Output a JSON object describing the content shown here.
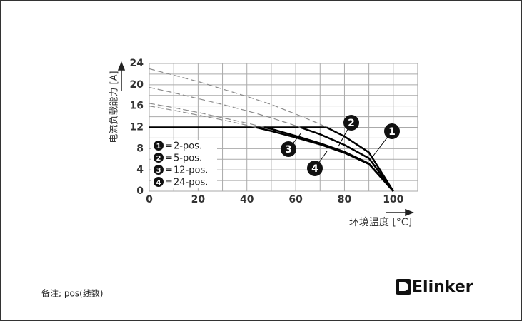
{
  "chart_data": {
    "type": "line",
    "ylabel": "电流负载能力 [A]",
    "xlabel": "环境温度 [°C]",
    "x": [
      0,
      10,
      20,
      30,
      40,
      50,
      60,
      70,
      80,
      90,
      100
    ],
    "limit": 12,
    "legend_separator": "=",
    "series": [
      {
        "marker": "1",
        "name": "2-pos.",
        "color": "#000000",
        "values": [
          23,
          21.8,
          20.6,
          19.2,
          17.8,
          16.3,
          14.5,
          12.6,
          10.3,
          7.3,
          0
        ]
      },
      {
        "marker": "2",
        "name": "5-pos.",
        "color": "#000000",
        "values": [
          19.5,
          18.5,
          17.4,
          16.3,
          15.1,
          13.8,
          12.3,
          10.7,
          8.7,
          6.2,
          0
        ]
      },
      {
        "marker": "3",
        "name": "12-pos.",
        "color": "#000000",
        "values": [
          16.5,
          15.7,
          14.8,
          13.8,
          12.8,
          11.7,
          10.4,
          9.0,
          7.4,
          5.2,
          0
        ]
      },
      {
        "marker": "4",
        "name": "24-pos.",
        "color": "#000000",
        "values": [
          16,
          15.2,
          14.3,
          13.4,
          12.4,
          11.3,
          10.1,
          8.8,
          7.2,
          5.1,
          0
        ]
      }
    ],
    "xlim": [
      0,
      110
    ],
    "xticks": [
      0,
      20,
      40,
      60,
      80,
      100
    ],
    "ylim": [
      0,
      24
    ],
    "yticks": [
      0,
      4,
      8,
      12,
      16,
      20,
      24
    ],
    "grid": true,
    "dashed_color": "#8c8c8c"
  },
  "note": "备注; pos(线数)",
  "brand": "Elinker"
}
